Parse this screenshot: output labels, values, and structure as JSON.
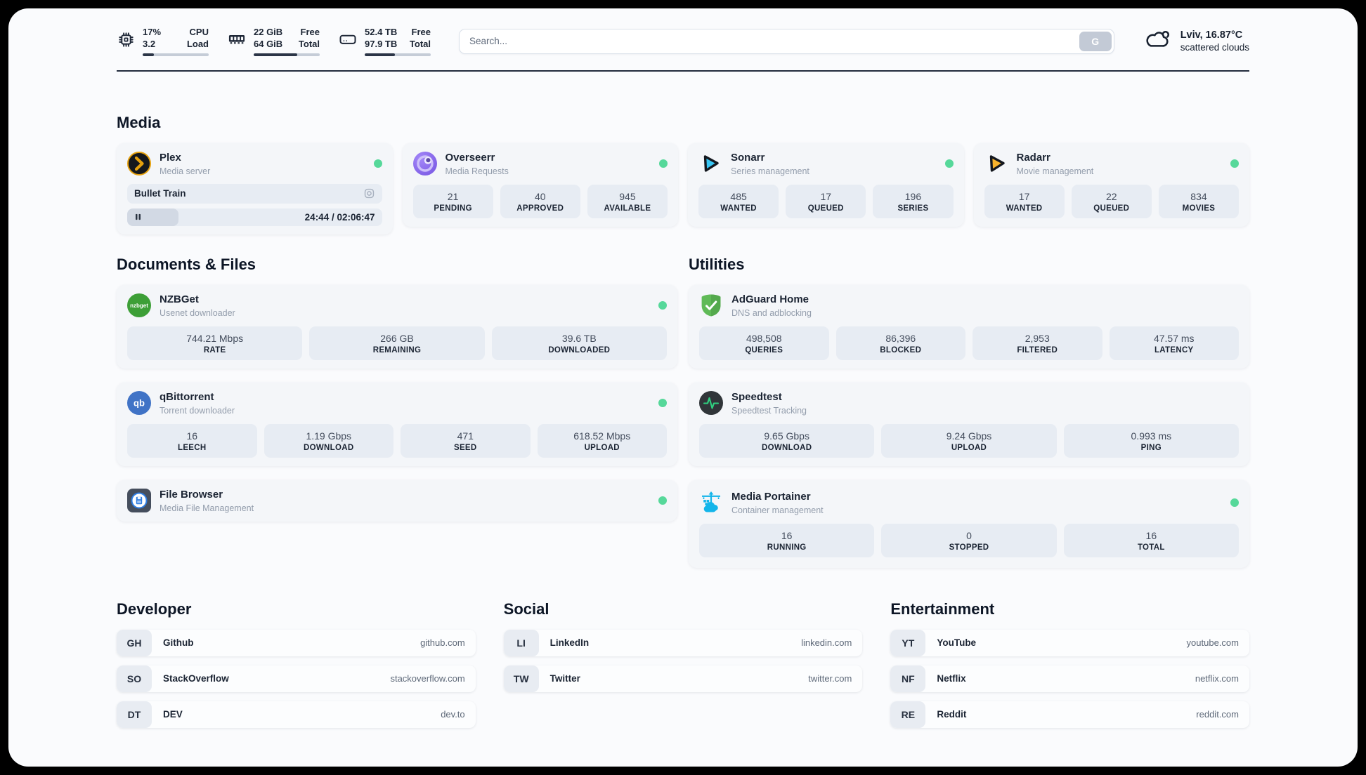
{
  "header": {
    "system_stats": [
      {
        "name": "cpu",
        "value_top": "17%",
        "value_bottom": "3.2",
        "label_top": "CPU",
        "label_bottom": "Load",
        "progress_pct": 17
      },
      {
        "name": "memory",
        "value_top": "22 GiB",
        "value_bottom": "64 GiB",
        "label_top": "Free",
        "label_bottom": "Total",
        "progress_pct": 66
      },
      {
        "name": "storage",
        "value_top": "52.4 TB",
        "value_bottom": "97.9 TB",
        "label_top": "Free",
        "label_bottom": "Total",
        "progress_pct": 46
      }
    ],
    "search": {
      "placeholder": "Search...",
      "engine_button": "G"
    },
    "weather": {
      "location": "Lviv, 16.87°C",
      "condition": "scattered clouds"
    }
  },
  "media": {
    "title": "Media",
    "plex": {
      "name": "Plex",
      "subtitle": "Media server",
      "online": true,
      "now_playing": "Bullet Train",
      "time": "24:44 / 02:06:47",
      "progress_pct": 20
    },
    "overseerr": {
      "name": "Overseerr",
      "subtitle": "Media Requests",
      "online": true,
      "stats": [
        {
          "value": "21",
          "label": "PENDING"
        },
        {
          "value": "40",
          "label": "APPROVED"
        },
        {
          "value": "945",
          "label": "AVAILABLE"
        }
      ]
    },
    "sonarr": {
      "name": "Sonarr",
      "subtitle": "Series management",
      "online": true,
      "stats": [
        {
          "value": "485",
          "label": "WANTED"
        },
        {
          "value": "17",
          "label": "QUEUED"
        },
        {
          "value": "196",
          "label": "SERIES"
        }
      ]
    },
    "radarr": {
      "name": "Radarr",
      "subtitle": "Movie management",
      "online": true,
      "stats": [
        {
          "value": "17",
          "label": "WANTED"
        },
        {
          "value": "22",
          "label": "QUEUED"
        },
        {
          "value": "834",
          "label": "MOVIES"
        }
      ]
    }
  },
  "documents": {
    "title": "Documents & Files",
    "nzbget": {
      "name": "NZBGet",
      "subtitle": "Usenet downloader",
      "online": true,
      "stats": [
        {
          "value": "744.21 Mbps",
          "label": "RATE"
        },
        {
          "value": "266 GB",
          "label": "REMAINING"
        },
        {
          "value": "39.6 TB",
          "label": "DOWNLOADED"
        }
      ]
    },
    "qbittorrent": {
      "name": "qBittorrent",
      "subtitle": "Torrent downloader",
      "online": true,
      "stats": [
        {
          "value": "16",
          "label": "LEECH"
        },
        {
          "value": "1.19 Gbps",
          "label": "DOWNLOAD"
        },
        {
          "value": "471",
          "label": "SEED"
        },
        {
          "value": "618.52 Mbps",
          "label": "UPLOAD"
        }
      ]
    },
    "filebrowser": {
      "name": "File Browser",
      "subtitle": "Media File Management",
      "online": true
    }
  },
  "utilities": {
    "title": "Utilities",
    "adguard": {
      "name": "AdGuard Home",
      "subtitle": "DNS and adblocking",
      "stats": [
        {
          "value": "498,508",
          "label": "QUERIES"
        },
        {
          "value": "86,396",
          "label": "BLOCKED"
        },
        {
          "value": "2,953",
          "label": "FILTERED"
        },
        {
          "value": "47.57 ms",
          "label": "LATENCY"
        }
      ]
    },
    "speedtest": {
      "name": "Speedtest",
      "subtitle": "Speedtest Tracking",
      "stats": [
        {
          "value": "9.65 Gbps",
          "label": "DOWNLOAD"
        },
        {
          "value": "9.24 Gbps",
          "label": "UPLOAD"
        },
        {
          "value": "0.993 ms",
          "label": "PING"
        }
      ]
    },
    "portainer": {
      "name": "Media Portainer",
      "subtitle": "Container management",
      "online": true,
      "stats": [
        {
          "value": "16",
          "label": "RUNNING"
        },
        {
          "value": "0",
          "label": "STOPPED"
        },
        {
          "value": "16",
          "label": "TOTAL"
        }
      ]
    }
  },
  "bookmarks": {
    "groups": [
      {
        "title": "Developer",
        "links": [
          {
            "abbr": "GH",
            "name": "Github",
            "url": "github.com"
          },
          {
            "abbr": "SO",
            "name": "StackOverflow",
            "url": "stackoverflow.com"
          },
          {
            "abbr": "DT",
            "name": "DEV",
            "url": "dev.to"
          }
        ]
      },
      {
        "title": "Social",
        "links": [
          {
            "abbr": "LI",
            "name": "LinkedIn",
            "url": "linkedin.com"
          },
          {
            "abbr": "TW",
            "name": "Twitter",
            "url": "twitter.com"
          }
        ]
      },
      {
        "title": "Entertainment",
        "links": [
          {
            "abbr": "YT",
            "name": "YouTube",
            "url": "youtube.com"
          },
          {
            "abbr": "NF",
            "name": "Netflix",
            "url": "netflix.com"
          },
          {
            "abbr": "RE",
            "name": "Reddit",
            "url": "reddit.com"
          }
        ]
      }
    ]
  },
  "colors": {
    "status_green": "#56d89a",
    "plex_amber": "#e5a00d",
    "sonarr_cyan": "#38c6f4",
    "radarr_amber": "#f9b42d",
    "portainer_blue": "#13b5ea"
  }
}
